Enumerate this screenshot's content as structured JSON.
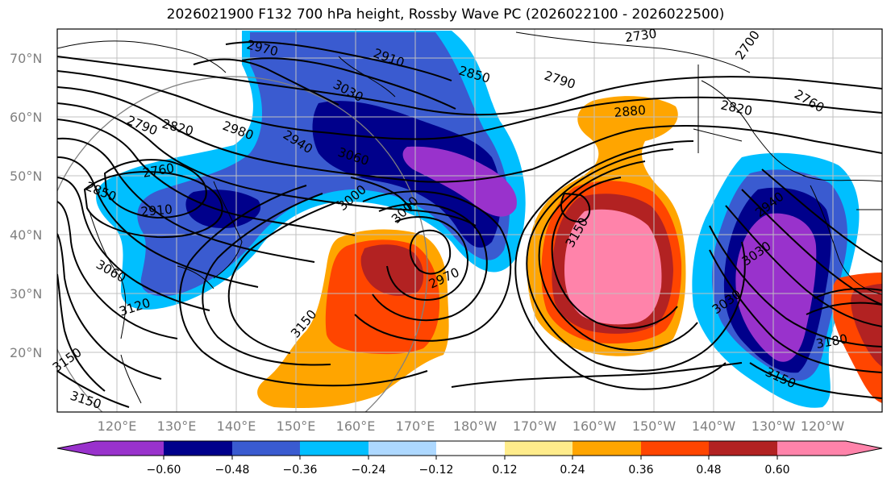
{
  "title": "2026021900 F132 700 hPa height, Rossby Wave PC (2026022100 - 2026022500)",
  "map": {
    "lat_labels": [
      "70°N",
      "60°N",
      "50°N",
      "40°N",
      "30°N",
      "20°N"
    ],
    "lon_labels": [
      "120°E",
      "130°E",
      "140°E",
      "150°E",
      "160°E",
      "170°E",
      "180°W",
      "170°W",
      "160°W",
      "150°W",
      "140°W",
      "130°W",
      "120°W"
    ],
    "contour_labels": [
      "2970",
      "2910",
      "2850",
      "2730",
      "2700",
      "2790",
      "2760",
      "2820",
      "2880",
      "3030",
      "3060",
      "2940",
      "2980",
      "2790",
      "2820",
      "2760",
      "2850",
      "2910",
      "3000",
      "3000",
      "3060",
      "3120",
      "3150",
      "2970",
      "3150",
      "2940",
      "3030",
      "3030",
      "3180",
      "3150",
      "3150",
      "3150"
    ]
  },
  "colorbar": {
    "colors": [
      "#9932cc",
      "#00008b",
      "#3a5bd0",
      "#00bfff",
      "#add8ff",
      "#ffffff",
      "#ffec8b",
      "#ffa500",
      "#ff4500",
      "#b22222",
      "#ff83aa"
    ],
    "ticks": [
      "−0.60",
      "−0.48",
      "−0.36",
      "−0.24",
      "−0.12",
      "0.12",
      "0.24",
      "0.36",
      "0.48",
      "0.60"
    ]
  }
}
